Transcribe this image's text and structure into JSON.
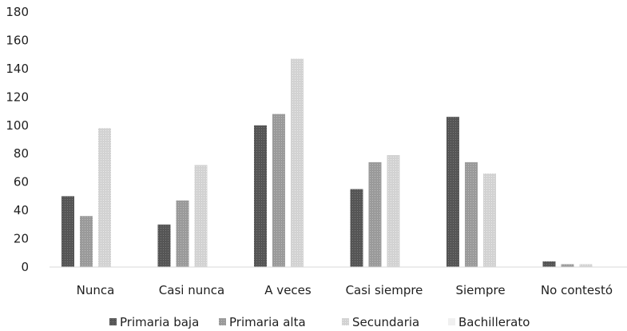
{
  "chart_data": {
    "type": "bar",
    "title": "",
    "xlabel": "",
    "ylabel": "",
    "ylim": [
      0,
      180
    ],
    "yticks": [
      0,
      20,
      40,
      60,
      80,
      100,
      120,
      140,
      160,
      180
    ],
    "grid": false,
    "legend_position": "bottom",
    "categories": [
      "Nunca",
      "Casi nunca",
      "A veces",
      "Casi siempre",
      "Siempre",
      "No contestó"
    ],
    "series": [
      {
        "name": "Primaria baja",
        "color": "#555555",
        "values": [
          50,
          30,
          100,
          55,
          106,
          4
        ]
      },
      {
        "name": "Primaria alta",
        "color": "#9a9a9a",
        "values": [
          36,
          47,
          108,
          74,
          74,
          2
        ]
      },
      {
        "name": "Secundaria",
        "color": "#d2d2d2",
        "values": [
          98,
          72,
          147,
          79,
          66,
          2
        ]
      },
      {
        "name": "Bachillerato",
        "color": "#f0f0f0",
        "values": [
          0,
          0,
          0,
          0,
          0,
          0
        ]
      }
    ]
  }
}
